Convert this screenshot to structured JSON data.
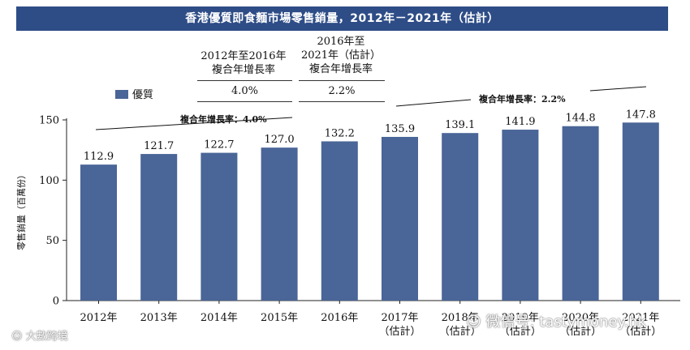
{
  "title": "香港優質即食麵市場零售銷量，2012年－2021年（估計）",
  "legend": {
    "label": "優質",
    "color": "#4a6597"
  },
  "cagr_table": [
    {
      "period_line1": "2012年至2016年",
      "period_line2": "複合年增長率",
      "value": "4.0%"
    },
    {
      "period_line1": "2016年至",
      "period_line2": "2021年（估計）",
      "period_line3": "複合年增長率",
      "value": "2.2%"
    }
  ],
  "trend_labels": [
    {
      "text": "複合年增長率：4.0%"
    },
    {
      "text": "複合年增長率：2.2%"
    }
  ],
  "watermarks": {
    "left": "大數跨境",
    "right": "微信号: tastymoney.hk"
  },
  "chart_data": {
    "type": "bar",
    "title": "香港優質即食麵市場零售銷量，2012年－2021年（估計）",
    "ylabel": "零售銷量（百萬份）",
    "xlabel": "",
    "ylim": [
      0,
      150
    ],
    "yticks": [
      0,
      50,
      100,
      150
    ],
    "categories": [
      {
        "year": "2012年",
        "note": ""
      },
      {
        "year": "2013年",
        "note": ""
      },
      {
        "year": "2014年",
        "note": ""
      },
      {
        "year": "2015年",
        "note": ""
      },
      {
        "year": "2016年",
        "note": ""
      },
      {
        "year": "2017年",
        "note": "（估計）"
      },
      {
        "year": "2018年",
        "note": "（估計）"
      },
      {
        "year": "2019年",
        "note": "（估計）"
      },
      {
        "year": "2020年",
        "note": "（估計）"
      },
      {
        "year": "2021年",
        "note": "（估計）"
      }
    ],
    "series": [
      {
        "name": "優質",
        "values": [
          112.9,
          121.7,
          122.7,
          127.0,
          132.2,
          135.9,
          139.1,
          141.9,
          144.8,
          147.8
        ]
      }
    ],
    "value_labels": [
      "112.9",
      "121.7",
      "122.7",
      "127.0",
      "132.2",
      "135.9",
      "139.1",
      "141.9",
      "144.8",
      "147.8"
    ]
  }
}
